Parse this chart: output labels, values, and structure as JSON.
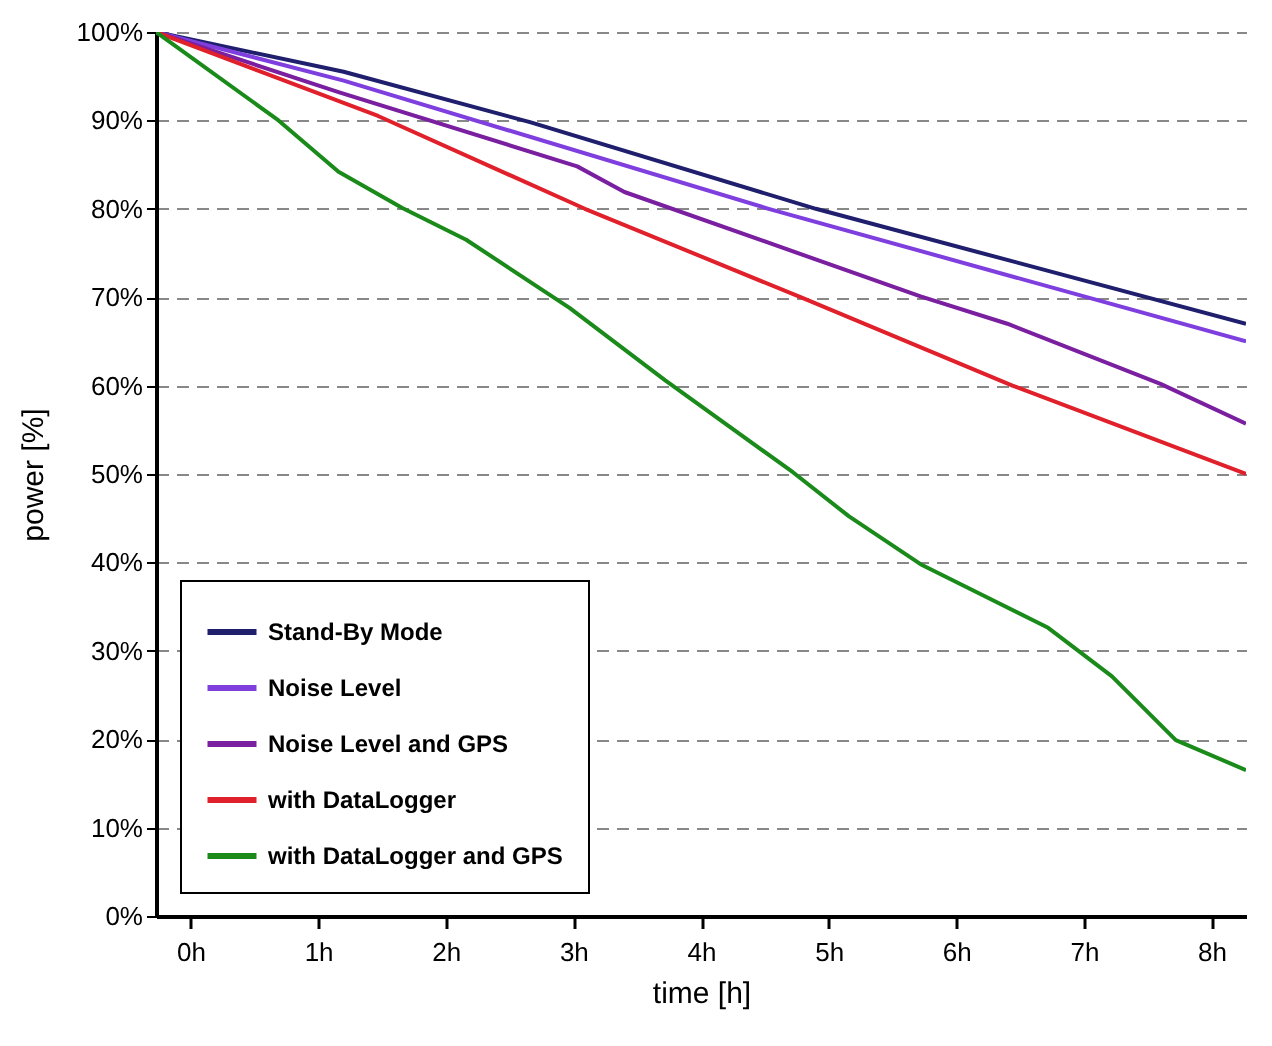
{
  "chart_data": {
    "type": "line",
    "xlabel": "time [h]",
    "ylabel": "power [%]",
    "xlim": [
      -0.27,
      8.27
    ],
    "xticks": [
      {
        "value": 0,
        "label": "0h"
      },
      {
        "value": 1,
        "label": "1h"
      },
      {
        "value": 2,
        "label": "2h"
      },
      {
        "value": 3,
        "label": "3h"
      },
      {
        "value": 4,
        "label": "4h"
      },
      {
        "value": 5,
        "label": "5h"
      },
      {
        "value": 6,
        "label": "6h"
      },
      {
        "value": 7,
        "label": "7h"
      },
      {
        "value": 8,
        "label": "8h"
      }
    ],
    "ylim": [
      0,
      100
    ],
    "yticks": [
      {
        "value": 0,
        "label": "0%"
      },
      {
        "value": 10,
        "label": "10%"
      },
      {
        "value": 20,
        "label": "20%"
      },
      {
        "value": 30,
        "label": "30%"
      },
      {
        "value": 40,
        "label": "40%"
      },
      {
        "value": 50,
        "label": "50%"
      },
      {
        "value": 60,
        "label": "60%"
      },
      {
        "value": 70,
        "label": "70%"
      },
      {
        "value": 80,
        "label": "80%"
      },
      {
        "value": 90,
        "label": "90%"
      },
      {
        "value": 100,
        "label": "100%"
      }
    ],
    "grid": "y",
    "legend": "bottom left",
    "marker": "none",
    "line_style": "solid",
    "series": [
      {
        "name": "Stand-By Mode",
        "color": "#1f1f6e",
        "x": [
          -0.27,
          1.2,
          2.66,
          4.9,
          8.27
        ],
        "values": [
          100,
          95.5,
          89.8,
          80,
          67
        ]
      },
      {
        "name": "Noise Level",
        "color": "#7f3fdf",
        "x": [
          -0.27,
          1.2,
          4.53,
          8.27
        ],
        "values": [
          100,
          94.5,
          80,
          65
        ]
      },
      {
        "name": "Noise Level and GPS",
        "color": "#7a1fa0",
        "x": [
          -0.27,
          1.16,
          3.03,
          3.4,
          5.72,
          6.4,
          7.6,
          8.27
        ],
        "values": [
          100,
          93.2,
          84.8,
          81.9,
          70.1,
          67,
          60.2,
          55.7
        ]
      },
      {
        "name": "with DataLogger",
        "color": "#e0202a",
        "x": [
          -0.27,
          1.47,
          3.09,
          4.78,
          6.44,
          8.27
        ],
        "values": [
          100,
          90.5,
          80,
          70,
          60,
          50
        ]
      },
      {
        "name": "with DataLogger and GPS",
        "color": "#1a8a1a",
        "x": [
          -0.27,
          0.69,
          1.16,
          1.66,
          2.16,
          2.97,
          3.72,
          4.72,
          5.16,
          5.72,
          6.22,
          6.72,
          7.22,
          7.72,
          8.27
        ],
        "values": [
          100,
          90,
          84.2,
          80.1,
          76.5,
          68.8,
          60.6,
          50.2,
          45.2,
          39.8,
          36.2,
          32.6,
          27.1,
          19.9,
          16.5
        ]
      }
    ]
  }
}
